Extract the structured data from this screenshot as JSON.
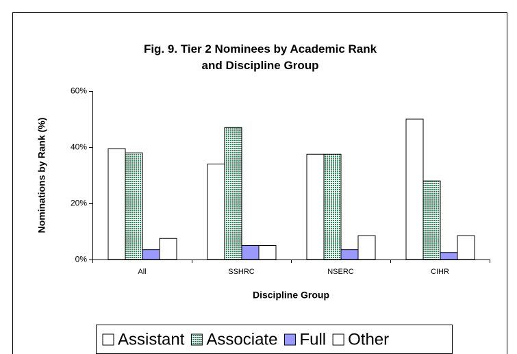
{
  "chart_data": {
    "type": "bar",
    "title": "Fig. 9. Tier 2 Nominees by Academic Rank and  Discipline Group",
    "xlabel": "Discipline Group",
    "ylabel": "Nominations by Rank (%)",
    "categories": [
      "All",
      "SSHRC",
      "NSERC",
      "CIHR"
    ],
    "series": [
      {
        "name": "Assistant",
        "color": "#ffffff",
        "values": [
          39.5,
          34,
          37.5,
          50
        ]
      },
      {
        "name": "Associate",
        "color": "#2e8b57",
        "values": [
          38,
          47,
          37.5,
          28
        ]
      },
      {
        "name": "Full",
        "color": "#9999ff",
        "values": [
          3.5,
          5,
          3.5,
          2.5
        ]
      },
      {
        "name": "Other",
        "color": "#ffffff",
        "values": [
          7.5,
          5,
          8.5,
          8.5
        ]
      }
    ],
    "ylim": [
      0,
      60
    ],
    "yticks": [
      {
        "value": 0,
        "label": "0%"
      },
      {
        "value": 20,
        "label": "20%"
      },
      {
        "value": 40,
        "label": "40%"
      },
      {
        "value": 60,
        "label": "60%"
      }
    ],
    "grid": false,
    "legend": "bottom"
  }
}
